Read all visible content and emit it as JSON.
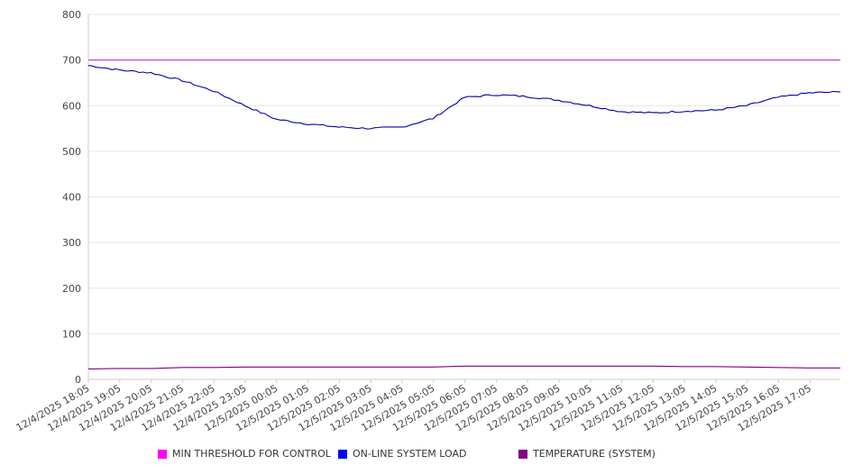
{
  "chart_data": {
    "type": "line",
    "title": "",
    "xlabel": "",
    "ylabel": "",
    "ylim": [
      0,
      800
    ],
    "yticks": [
      0,
      100,
      200,
      300,
      400,
      500,
      600,
      700,
      800
    ],
    "grid": true,
    "legend_position": "bottom",
    "x_tick_labels": [
      "12/4/2025 18:05",
      "12/4/2025 19:05",
      "12/4/2025 20:05",
      "12/4/2025 21:05",
      "12/4/2025 22:05",
      "12/4/2025 23:05",
      "12/5/2025 00:05",
      "12/5/2025 01:05",
      "12/5/2025 02:05",
      "12/5/2025 03:05",
      "12/5/2025 04:05",
      "12/5/2025 05:05",
      "12/5/2025 06:05",
      "12/5/2025 07:05",
      "12/5/2025 08:05",
      "12/5/2025 09:05",
      "12/5/2025 10:05",
      "12/5/2025 11:05",
      "12/5/2025 12:05",
      "12/5/2025 13:05",
      "12/5/2025 14:05",
      "12/5/2025 15:05",
      "12/5/2025 16:05",
      "12/5/2025 17:05"
    ],
    "series": [
      {
        "name": "MIN THRESHOLD FOR CONTROL",
        "color": "#ff00ff",
        "line_color": "#cc33cc",
        "values": [
          700,
          700,
          700,
          700,
          700,
          700,
          700,
          700,
          700,
          700,
          700,
          700,
          700,
          700,
          700,
          700,
          700,
          700,
          700,
          700,
          700,
          700,
          700,
          700,
          700
        ]
      },
      {
        "name": "ON-LINE SYSTEM LOAD",
        "color": "#0000ff",
        "line_color": "#0000aa",
        "values": [
          688,
          678,
          672,
          655,
          632,
          600,
          570,
          560,
          553,
          550,
          553,
          572,
          618,
          624,
          620,
          612,
          600,
          587,
          584,
          588,
          590,
          600,
          618,
          628,
          630
        ]
      },
      {
        "name": "TEMPERATURE (SYSTEM)",
        "color": "#800080",
        "line_color": "#800080",
        "values": [
          23,
          24,
          24,
          26,
          26,
          27,
          27,
          27,
          27,
          27,
          27,
          27,
          29,
          29,
          29,
          29,
          29,
          29,
          29,
          28,
          28,
          27,
          26,
          25,
          25
        ]
      }
    ]
  }
}
